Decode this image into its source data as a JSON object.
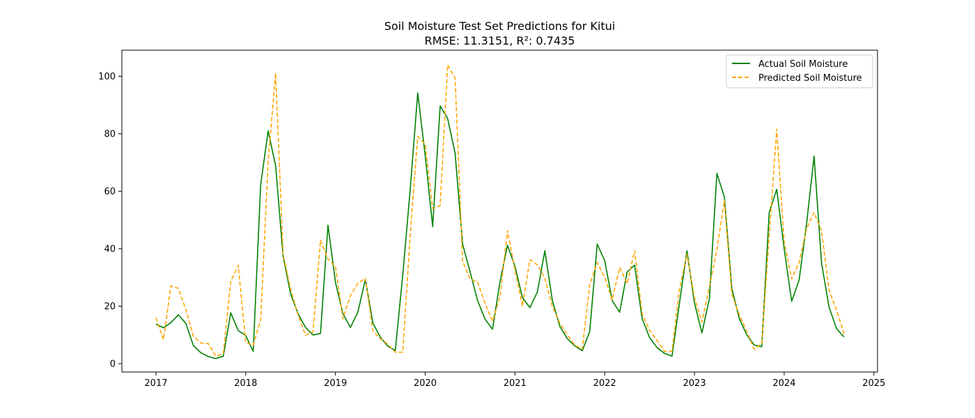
{
  "chart_data": {
    "type": "line",
    "title": "Soil Moisture Test Set Predictions for Kitui",
    "subtitle": "RMSE: 11.3151, R²: 0.7435",
    "xlabel": "",
    "ylabel": "",
    "xlim": [
      2016.62,
      2025.04
    ],
    "ylim": [
      -2.9,
      109.1
    ],
    "x_ticks": [
      "2017",
      "2018",
      "2019",
      "2020",
      "2021",
      "2022",
      "2023",
      "2024",
      "2025"
    ],
    "y_ticks": [
      0,
      20,
      40,
      60,
      80,
      100
    ],
    "grid": false,
    "legend_position": "top-right",
    "x": [
      "2017-01",
      "2017-02",
      "2017-03",
      "2017-04",
      "2017-05",
      "2017-06",
      "2017-07",
      "2017-08",
      "2017-09",
      "2017-10",
      "2017-11",
      "2017-12",
      "2018-01",
      "2018-02",
      "2018-03",
      "2018-04",
      "2018-05",
      "2018-06",
      "2018-07",
      "2018-08",
      "2018-09",
      "2018-10",
      "2018-11",
      "2018-12",
      "2019-01",
      "2019-02",
      "2019-03",
      "2019-04",
      "2019-05",
      "2019-06",
      "2019-07",
      "2019-08",
      "2019-09",
      "2019-10",
      "2019-11",
      "2019-12",
      "2020-01",
      "2020-02",
      "2020-03",
      "2020-04",
      "2020-05",
      "2020-06",
      "2020-07",
      "2020-08",
      "2020-09",
      "2020-10",
      "2020-11",
      "2020-12",
      "2021-01",
      "2021-02",
      "2021-03",
      "2021-04",
      "2021-05",
      "2021-06",
      "2021-07",
      "2021-08",
      "2021-09",
      "2021-10",
      "2021-11",
      "2021-12",
      "2022-01",
      "2022-02",
      "2022-03",
      "2022-04",
      "2022-05",
      "2022-06",
      "2022-07",
      "2022-08",
      "2022-09",
      "2022-10",
      "2022-11",
      "2022-12",
      "2023-01",
      "2023-02",
      "2023-03",
      "2023-04",
      "2023-05",
      "2023-06",
      "2023-07",
      "2023-08",
      "2023-09",
      "2023-10",
      "2023-11",
      "2023-12",
      "2024-01",
      "2024-02",
      "2024-03",
      "2024-04",
      "2024-05",
      "2024-06",
      "2024-07",
      "2024-08",
      "2024-09"
    ],
    "series": [
      {
        "name": "Actual Soil Moisture",
        "color": "#008000",
        "style": "solid",
        "values": [
          13.8,
          12.5,
          14.3,
          17.0,
          14.0,
          6.3,
          3.8,
          2.5,
          1.8,
          2.6,
          17.7,
          11.5,
          9.8,
          4.3,
          62.3,
          81.0,
          68.8,
          37.4,
          24.3,
          17.4,
          12.6,
          10.0,
          10.5,
          48.2,
          28.3,
          17.4,
          12.6,
          18.0,
          29.3,
          14.2,
          9.2,
          6.1,
          4.6,
          30.8,
          60.8,
          94.2,
          72.4,
          47.7,
          89.7,
          85.3,
          73.2,
          41.6,
          32.0,
          22.0,
          15.5,
          12.0,
          28.5,
          41.2,
          33.9,
          23.0,
          19.5,
          25.0,
          39.3,
          22.0,
          13.0,
          8.7,
          6.2,
          4.5,
          11.2,
          41.6,
          35.9,
          22.0,
          17.9,
          31.9,
          34.3,
          15.8,
          9.1,
          5.6,
          3.6,
          2.6,
          21.1,
          39.3,
          21.2,
          10.7,
          22.6,
          66.2,
          58.1,
          26.2,
          15.7,
          10.0,
          6.5,
          5.9,
          52.6,
          60.7,
          40.0,
          21.7,
          29.1,
          48.8,
          72.2,
          34.9,
          19.7,
          12.2,
          9.3
        ]
      },
      {
        "name": "Predicted Soil Moisture",
        "color": "#ffa500",
        "style": "dashed",
        "values": [
          16.0,
          8.4,
          27.1,
          26.2,
          18.8,
          9.5,
          7.2,
          7.0,
          2.6,
          3.5,
          28.7,
          34.2,
          7.4,
          6.4,
          15.3,
          70.4,
          101.1,
          38.0,
          26.0,
          16.9,
          9.9,
          11.0,
          43.0,
          36.4,
          33.8,
          15.6,
          23.7,
          28.0,
          29.7,
          11.4,
          8.7,
          6.8,
          4.0,
          4.0,
          45.0,
          79.1,
          76.4,
          54.0,
          55.0,
          104.0,
          99.3,
          35.7,
          29.4,
          28.5,
          20.9,
          14.8,
          23.2,
          46.3,
          32.7,
          20.1,
          36.2,
          34.4,
          29.7,
          20.0,
          14.1,
          10.1,
          6.4,
          5.1,
          27.5,
          35.2,
          30.1,
          22.2,
          33.5,
          27.9,
          39.3,
          17.5,
          11.6,
          8.1,
          4.3,
          4.3,
          26.0,
          38.1,
          23.0,
          14.5,
          26.7,
          39.7,
          56.8,
          24.2,
          17.0,
          11.2,
          5.0,
          7.0,
          44.6,
          81.6,
          42.4,
          29.5,
          35.2,
          47.0,
          52.6,
          46.1,
          25.7,
          18.6,
          10.5
        ]
      }
    ]
  }
}
